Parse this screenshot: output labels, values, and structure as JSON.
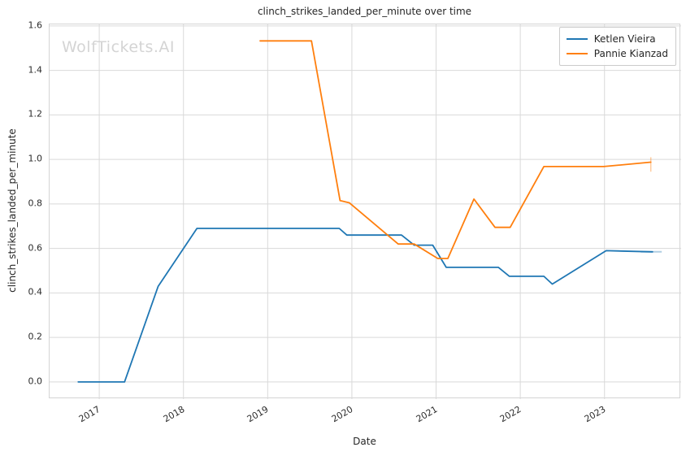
{
  "watermark": "WolfTickets.AI",
  "chart_data": {
    "type": "line",
    "title": "clinch_strikes_landed_per_minute over time",
    "xlabel": "Date",
    "ylabel": "clinch_strikes_landed_per_minute",
    "grid": true,
    "legend_position": "upper right",
    "xlim": [
      2016.41,
      2023.91
    ],
    "ylim": [
      -0.077,
      1.607
    ],
    "x_ticks": [
      2017,
      2018,
      2019,
      2020,
      2021,
      2022,
      2023
    ],
    "x_tick_labels": [
      "2017",
      "2018",
      "2019",
      "2020",
      "2021",
      "2022",
      "2023"
    ],
    "y_ticks": [
      0.0,
      0.2,
      0.4,
      0.6,
      0.8,
      1.0,
      1.2,
      1.4,
      1.6
    ],
    "y_tick_labels": [
      "0.0",
      "0.2",
      "0.4",
      "0.6",
      "0.8",
      "1.0",
      "1.2",
      "1.4",
      "1.6"
    ],
    "grid_color": "#d9d9d9",
    "series": [
      {
        "name": "Ketlen Vieira",
        "color": "#1f77b4",
        "x": [
          2016.75,
          2017.3,
          2017.7,
          2018.16,
          2019.85,
          2019.94,
          2020.59,
          2020.74,
          2020.96,
          2021.12,
          2021.74,
          2021.87,
          2022.28,
          2022.38,
          2023.02,
          2023.57
        ],
        "y": [
          0.0,
          0.0,
          0.43,
          0.69,
          0.69,
          0.66,
          0.66,
          0.615,
          0.615,
          0.515,
          0.515,
          0.475,
          0.475,
          0.44,
          0.59,
          0.585
        ]
      },
      {
        "name": "Pannie Kianzad",
        "color": "#ff7f0e",
        "x": [
          2018.91,
          2019.52,
          2019.86,
          2019.97,
          2020.55,
          2020.74,
          2021.02,
          2021.14,
          2021.45,
          2021.7,
          2021.88,
          2022.28,
          2022.99,
          2023.55
        ],
        "y": [
          1.533,
          1.533,
          0.815,
          0.805,
          0.62,
          0.62,
          0.555,
          0.555,
          0.822,
          0.695,
          0.695,
          0.968,
          0.968,
          0.988
        ]
      }
    ],
    "error_caps": [
      {
        "series": "Ketlen Vieira",
        "orient": "h",
        "x": [
          2023.43,
          2023.68
        ],
        "y": 0.585
      },
      {
        "series": "Pannie Kianzad",
        "orient": "v",
        "x": 2023.55,
        "y": [
          0.945,
          1.01
        ]
      }
    ]
  }
}
